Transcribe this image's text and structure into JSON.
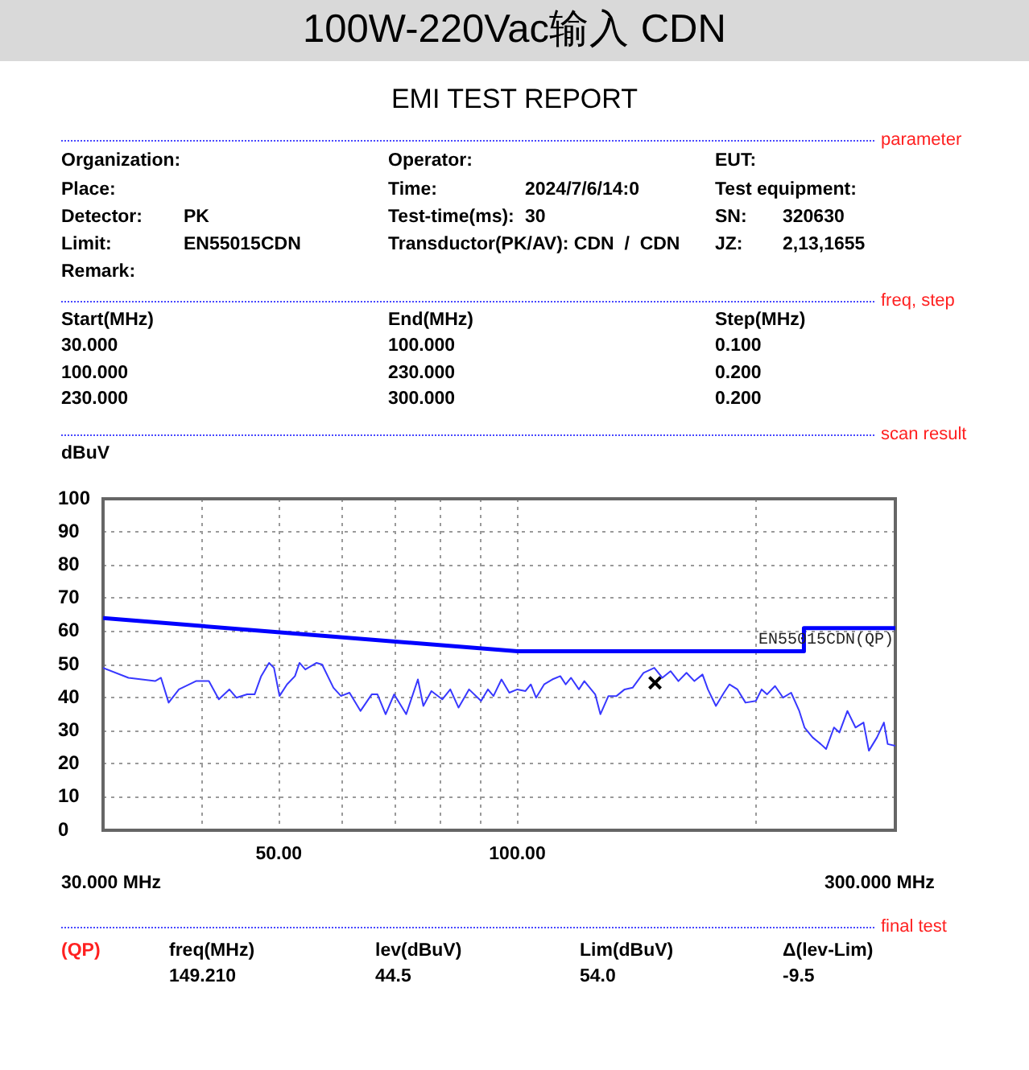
{
  "chart_data": {
    "type": "line",
    "title": "100W-220Vac输入 CDN",
    "subtitle": "EMI TEST REPORT",
    "ylabel": "dBuV",
    "annotations": [
      "parameter",
      "Organization:",
      "Operator:",
      "EUT:",
      "Place:",
      "Time:",
      "2024/7/6/14:0",
      "Test equipment:",
      "Detector:",
      "PK",
      "Test-time(ms):",
      "30",
      "SN:",
      "320630",
      "Limit:",
      "EN55015CDN",
      "Transductor(PK/AV): CDN  /  CDN",
      "JZ:",
      "2,13,1655",
      "Remark:",
      "freq, step",
      "Start(MHz)",
      "End(MHz)",
      "Step(MHz)",
      "30.000",
      "100.000",
      "0.100",
      "100.000",
      "230.000",
      "0.200",
      "230.000",
      "300.000",
      "0.200",
      "scan result",
      "30.000 MHz",
      "300.000 MHz",
      "final test",
      "(QP)",
      "freq(MHz)",
      "lev(dBuV)",
      "Lim(dBuV)",
      "Δ(lev-Lim)",
      "149.210",
      "44.5",
      "54.0",
      "-9.5"
    ],
    "log": "x",
    "grid": true,
    "xlim": [
      30,
      300
    ],
    "xticks": [
      {
        "value": 40,
        "label": null
      },
      {
        "value": 50,
        "label": "50.00"
      },
      {
        "value": 60,
        "label": null
      },
      {
        "value": 70,
        "label": null
      },
      {
        "value": 80,
        "label": null
      },
      {
        "value": 90,
        "label": null
      },
      {
        "value": 100,
        "label": "100.00"
      },
      {
        "value": 200,
        "label": null
      }
    ],
    "ylim": [
      0,
      100
    ],
    "yticks": [
      0,
      10,
      20,
      30,
      40,
      50,
      60,
      70,
      80,
      90,
      100
    ],
    "series": [
      {
        "name": "EN55015CDN(QP)",
        "color": "#0000ff",
        "x": [
          30,
          100,
          230,
          230,
          300
        ],
        "values": [
          64,
          54,
          54,
          61,
          61
        ]
      },
      {
        "color": "#3838ff",
        "x": [
          30,
          32.3,
          34.9,
          35.5,
          36.3,
          37.4,
          39.3,
          40.8,
          42.0,
          43.3,
          44.2,
          45.6,
          46.6,
          47.5,
          48.6,
          49.3,
          50.1,
          51.2,
          52.4,
          53.1,
          54.0,
          55.8,
          56.7,
          58.6,
          59.9,
          61.4,
          63.4,
          65.5,
          66.6,
          68.2,
          69.9,
          72.4,
          74.9,
          76.1,
          77.9,
          80.4,
          82.3,
          84.3,
          86.9,
          90.0,
          91.8,
          93.3,
          95.5,
          97.7,
          100,
          102.4,
          104,
          105.6,
          108.1,
          110.7,
          113.3,
          115.1,
          116.9,
          119.6,
          121.5,
          125.4,
          127.3,
          130.3,
          133.4,
          136.6,
          139.8,
          144.3,
          148.9,
          152.4,
          156.1,
          159.7,
          163.5,
          167.3,
          171.3,
          174,
          178.1,
          182.3,
          185.2,
          189.6,
          194.1,
          200,
          203.4,
          206.6,
          211.5,
          216.5,
          221.6,
          226.9,
          230.4,
          235.9,
          241.5,
          245.3,
          251,
          255,
          261,
          267.2,
          273.5,
          277.8,
          284.4,
          290.2,
          293.4,
          300
        ],
        "values": [
          49,
          46,
          45,
          46,
          38.5,
          42.5,
          45,
          45,
          39.5,
          42.5,
          40,
          41,
          41,
          46.5,
          50.5,
          49,
          40.5,
          44,
          46.5,
          50.5,
          48.5,
          50.5,
          50,
          43,
          40.5,
          41.5,
          36,
          41,
          41,
          35,
          41,
          35,
          45.5,
          37.5,
          42,
          39.5,
          42.5,
          37,
          42.5,
          39,
          42.5,
          40.5,
          45.5,
          41.5,
          42.5,
          42,
          44,
          40,
          44,
          45.5,
          46.5,
          44,
          46,
          42.5,
          45,
          41,
          35,
          40.5,
          40.5,
          42.5,
          43,
          47.5,
          49,
          46,
          48,
          45,
          47.5,
          45,
          47,
          42.5,
          37.5,
          41.5,
          44,
          42.5,
          38.5,
          39,
          42.5,
          41,
          43.5,
          40,
          41.5,
          36,
          31,
          28,
          26,
          24.5,
          31,
          29.5,
          36,
          31,
          32.5,
          24,
          28,
          32.5,
          26,
          25.5
        ]
      },
      {
        "type": "scatter",
        "marker": "cross",
        "color": "#000000",
        "x": [
          149.21
        ],
        "values": [
          44.5
        ]
      }
    ]
  }
}
